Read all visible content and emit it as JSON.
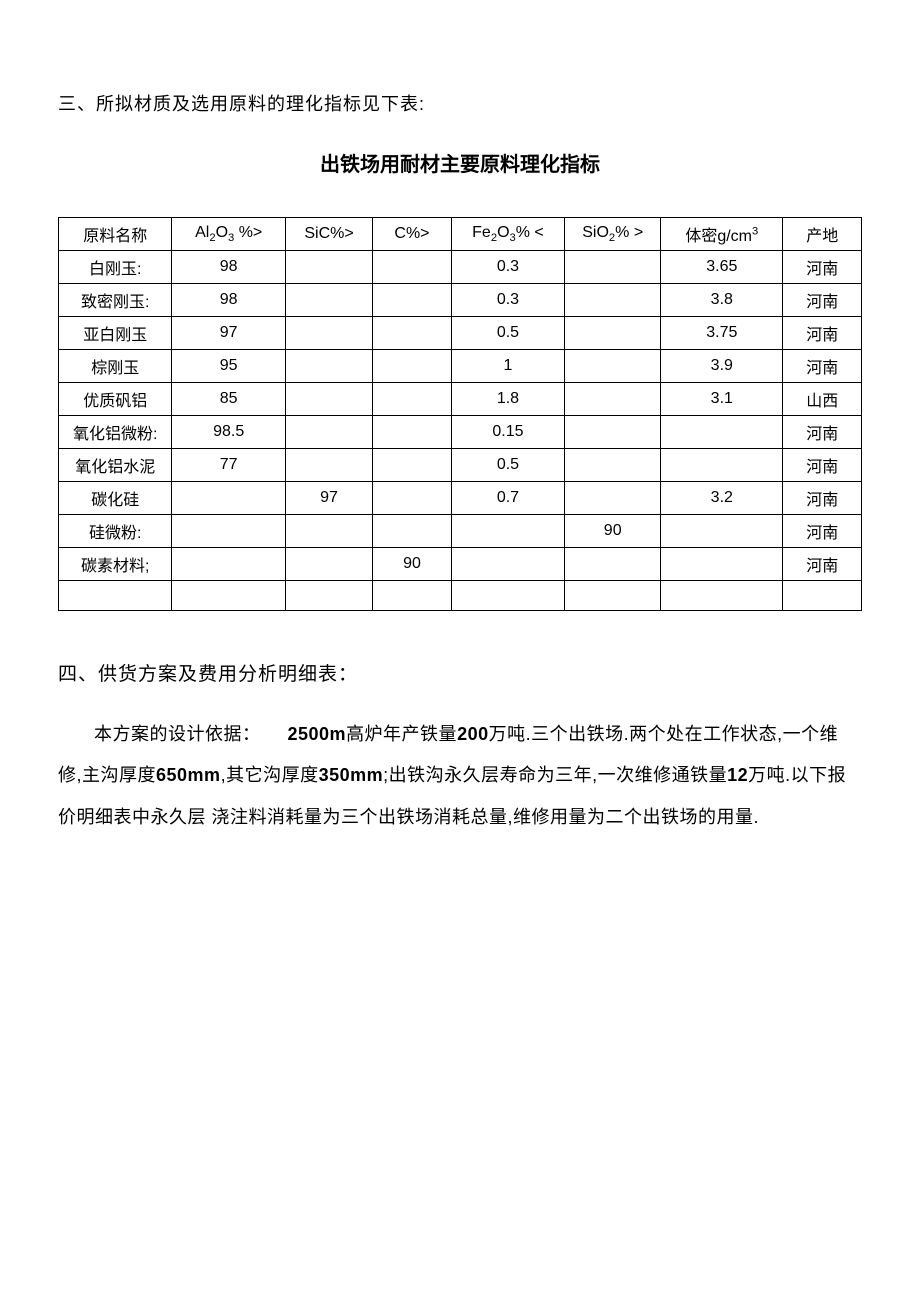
{
  "section3": {
    "heading": "三、所拟材质及选用原料的理化指标见下表:",
    "table_title": "出铁场用耐材主要原料理化指标",
    "columns": {
      "name": "原料名称",
      "al2o3_prefix": "Al",
      "al2o3_sub1": "2",
      "al2o3_mid": "O",
      "al2o3_sub2": "3",
      "al2o3_suffix": " %>",
      "sic": "SiC%>",
      "c": "C%>",
      "fe2o3_prefix": "Fe",
      "fe2o3_sub1": "2",
      "fe2o3_mid": "O",
      "fe2o3_sub2": "3",
      "fe2o3_suffix": "% <",
      "sio2_prefix": "SiO",
      "sio2_sub": "2",
      "sio2_suffix": "% >",
      "density_prefix": "体密g/cm",
      "density_sup": "3",
      "origin": "产地"
    },
    "rows": [
      {
        "name": "白刚玉:",
        "al2o3": "98",
        "sic": "",
        "c": "",
        "fe2o3": "0.3",
        "sio2": "",
        "density": "3.65",
        "origin": "河南"
      },
      {
        "name": "致密刚玉:",
        "al2o3": "98",
        "sic": "",
        "c": "",
        "fe2o3": "0.3",
        "sio2": "",
        "density": "3.8",
        "origin": "河南"
      },
      {
        "name": "亚白刚玉",
        "al2o3": "97",
        "sic": "",
        "c": "",
        "fe2o3": "0.5",
        "sio2": "",
        "density": "3.75",
        "origin": "河南"
      },
      {
        "name": "棕刚玉",
        "al2o3": "95",
        "sic": "",
        "c": "",
        "fe2o3": "1",
        "sio2": "",
        "density": "3.9",
        "origin": "河南"
      },
      {
        "name": "优质矾铝",
        "al2o3": "85",
        "sic": "",
        "c": "",
        "fe2o3": "1.8",
        "sio2": "",
        "density": "3.1",
        "origin": "山西"
      },
      {
        "name": "氧化铝微粉:",
        "al2o3": "98.5",
        "sic": "",
        "c": "",
        "fe2o3": "0.15",
        "sio2": "",
        "density": "",
        "origin": "河南"
      },
      {
        "name": "氧化铝水泥",
        "al2o3": "77",
        "sic": "",
        "c": "",
        "fe2o3": "0.5",
        "sio2": "",
        "density": "",
        "origin": "河南"
      },
      {
        "name": "碳化硅",
        "al2o3": "",
        "sic": "97",
        "c": "",
        "fe2o3": "0.7",
        "sio2": "",
        "density": "3.2",
        "origin": "河南"
      },
      {
        "name": "硅微粉:",
        "al2o3": "",
        "sic": "",
        "c": "",
        "fe2o3": "",
        "sio2": "90",
        "density": "",
        "origin": "河南"
      },
      {
        "name": "碳素材料;",
        "al2o3": "",
        "sic": "",
        "c": "90",
        "fe2o3": "",
        "sio2": "",
        "density": "",
        "origin": "河南"
      },
      {
        "name": "",
        "al2o3": "",
        "sic": "",
        "c": "",
        "fe2o3": "",
        "sio2": "",
        "density": "",
        "origin": ""
      }
    ]
  },
  "section4": {
    "heading": "四、供货方案及费用分析明细表：",
    "paragraph": {
      "part1": "本方案的设计依据：",
      "bold1": "2500m",
      "part2": "高炉年产铁量",
      "bold2": "200",
      "part3": "万吨.三个出铁场.两个处在工作状态,一个维修,主沟厚度",
      "bold3": "650mm",
      "part4": ",其它沟厚度",
      "bold4": "350mm",
      "part5": ";出铁沟永久层寿命为三年,一次维修通铁量",
      "bold5": "12",
      "part6": "万吨.以下报价明细表中永久层 浇注料消耗量为三个出铁场消耗总量,维修用量为二个出铁场的用量."
    }
  }
}
